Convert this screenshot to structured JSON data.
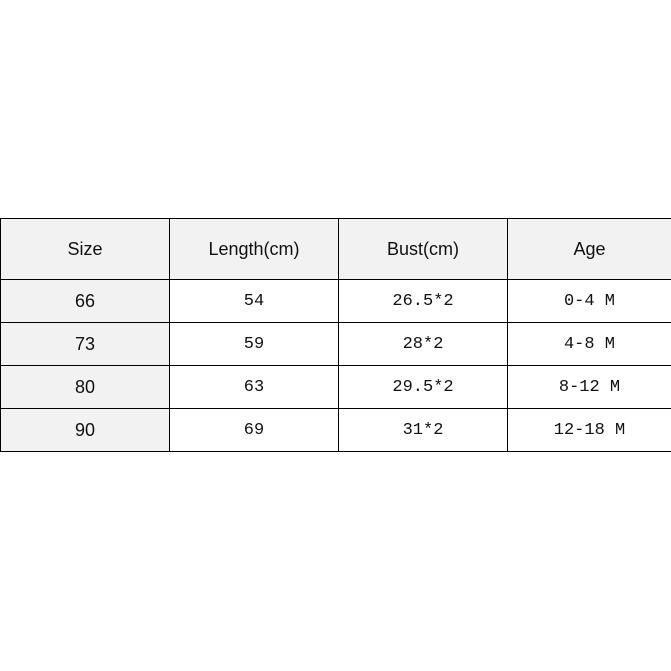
{
  "table": {
    "headers": [
      "Size",
      "Length(cm)",
      "Bust(cm)",
      "Age"
    ],
    "rows": [
      [
        "66",
        "54",
        "26.5*2",
        "0-4 M"
      ],
      [
        "73",
        "59",
        "28*2",
        "4-8 M"
      ],
      [
        "80",
        "63",
        "29.5*2",
        "8-12 M"
      ],
      [
        "90",
        "69",
        "31*2",
        "12-18 M"
      ]
    ]
  },
  "colors": {
    "header_bg": "#f2f2f2",
    "border": "#000000"
  }
}
